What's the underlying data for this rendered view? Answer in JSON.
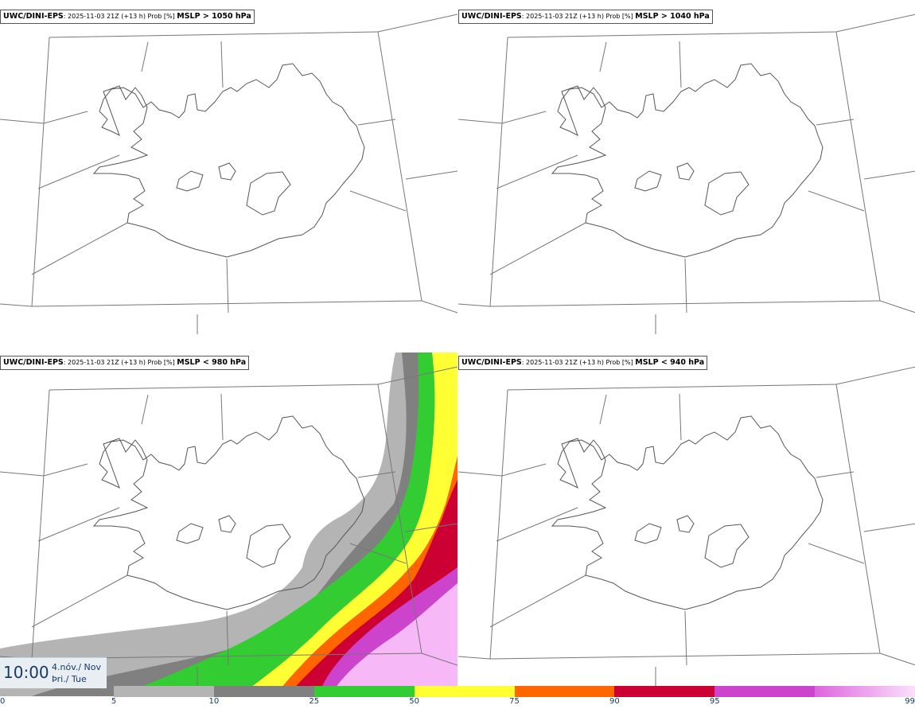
{
  "panels": [
    {
      "model": "UWC/DINI-EPS",
      "meta": ": 2025-11-03 21Z (+13 h) Prob [%] ",
      "condition": "MSLP > 1050 hPa",
      "filled": false
    },
    {
      "model": "UWC/DINI-EPS",
      "meta": ": 2025-11-03 21Z (+13 h) Prob [%] ",
      "condition": "MSLP > 1040 hPa",
      "filled": false
    },
    {
      "model": "UWC/DINI-EPS",
      "meta": ": 2025-11-03 21Z (+13 h) Prob [%] ",
      "condition": "MSLP < 980 hPa",
      "filled": true
    },
    {
      "model": "UWC/DINI-EPS",
      "meta": ": 2025-11-03 21Z (+13 h) Prob [%] ",
      "condition": "MSLP < 940 hPa",
      "filled": false
    }
  ],
  "time": {
    "clock": "10:00",
    "date_line1": "4.nóv./ Nov",
    "date_line2": "Þri./ Tue"
  },
  "legend": {
    "ticks": [
      "0",
      "5",
      "10",
      "25",
      "50",
      "75",
      "90",
      "95",
      "99"
    ],
    "colors": [
      "#ffffff",
      "#b4b4b4",
      "#808080",
      "#33cc33",
      "#ffff33",
      "#ff6600",
      "#cc0033",
      "#cc44cc",
      "#f7b8f7"
    ]
  }
}
